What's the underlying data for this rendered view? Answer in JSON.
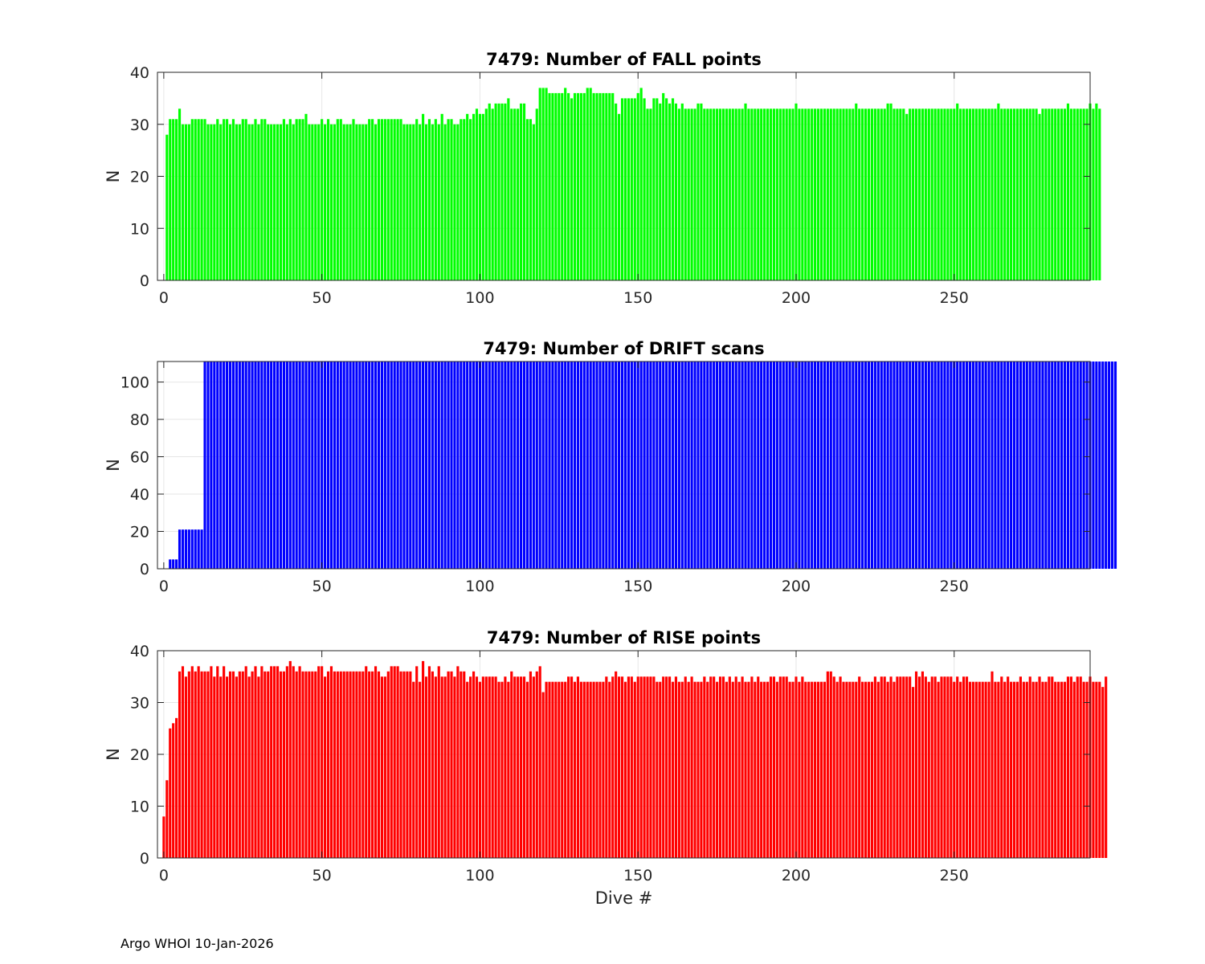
{
  "footer": "Argo WHOI 10-Jan-2026",
  "chart_data": [
    {
      "type": "bar",
      "title": "7479: Number of FALL points",
      "ylabel": "N",
      "xlabel": "",
      "color": "#00ff00",
      "xlim": [
        -2,
        293
      ],
      "ylim": [
        0,
        40
      ],
      "xticks": [
        0,
        50,
        100,
        150,
        200,
        250
      ],
      "yticks": [
        0,
        10,
        20,
        30,
        40
      ],
      "grid": true,
      "x_start": 1,
      "values": [
        28,
        31,
        31,
        31,
        33,
        30,
        30,
        30,
        31,
        31,
        31,
        31,
        31,
        30,
        30,
        30,
        31,
        30,
        31,
        31,
        30,
        31,
        30,
        30,
        31,
        31,
        30,
        30,
        31,
        30,
        31,
        31,
        30,
        30,
        30,
        30,
        30,
        31,
        30,
        31,
        30,
        31,
        31,
        31,
        32,
        30,
        30,
        30,
        30,
        31,
        30,
        31,
        30,
        30,
        31,
        31,
        30,
        30,
        30,
        31,
        30,
        30,
        30,
        30,
        31,
        31,
        30,
        31,
        31,
        31,
        31,
        31,
        31,
        31,
        31,
        30,
        30,
        30,
        30,
        31,
        30,
        32,
        30,
        31,
        30,
        31,
        30,
        32,
        30,
        31,
        31,
        30,
        30,
        31,
        31,
        32,
        31,
        32,
        33,
        32,
        32,
        33,
        34,
        33,
        34,
        34,
        34,
        34,
        35,
        33,
        33,
        33,
        34,
        34,
        31,
        31,
        30,
        33,
        37,
        37,
        37,
        36,
        36,
        36,
        36,
        36,
        37,
        36,
        35,
        36,
        36,
        36,
        36,
        37,
        37,
        36,
        36,
        36,
        36,
        36,
        36,
        36,
        34,
        32,
        35,
        35,
        35,
        35,
        35,
        36,
        37,
        35,
        33,
        33,
        35,
        35,
        34,
        36,
        35,
        34,
        35,
        34,
        33,
        34,
        33,
        33,
        33,
        33,
        34,
        34,
        33,
        33,
        33,
        33,
        33,
        33,
        33,
        33,
        33,
        33,
        33,
        33,
        33,
        34,
        33,
        33,
        33,
        33,
        33,
        33,
        33,
        33,
        33,
        33,
        33,
        33,
        33,
        33,
        33,
        34,
        33,
        33,
        33,
        33,
        33,
        33,
        33,
        33,
        33,
        33,
        33,
        33,
        33,
        33,
        33,
        33,
        33,
        33,
        34,
        33,
        33,
        33,
        33,
        33,
        33,
        33,
        33,
        33,
        34,
        34,
        33,
        33,
        33,
        33,
        32,
        33,
        33,
        33,
        33,
        33,
        33,
        33,
        33,
        33,
        33,
        33,
        33,
        33,
        33,
        33,
        34,
        33,
        33,
        33,
        33,
        33,
        33,
        33,
        33,
        33,
        33,
        33,
        33,
        34,
        33,
        33,
        33,
        33,
        33,
        33,
        33,
        33,
        33,
        33,
        33,
        33,
        32,
        33,
        33,
        33,
        33,
        33,
        33,
        33,
        33,
        34,
        33,
        33,
        33,
        33,
        33,
        33,
        34,
        33,
        34,
        33
      ]
    },
    {
      "type": "bar",
      "title": "7479: Number of DRIFT scans",
      "ylabel": "N",
      "xlabel": "",
      "color": "#0000ff",
      "xlim": [
        -2,
        293
      ],
      "ylim": [
        0,
        111
      ],
      "xticks": [
        0,
        50,
        100,
        150,
        200,
        250
      ],
      "yticks": [
        0,
        20,
        40,
        60,
        80,
        100
      ],
      "grid": true,
      "x_start": 1,
      "values": [
        0,
        5,
        5,
        5,
        21,
        21,
        21,
        21,
        21,
        21,
        21,
        21,
        111,
        111,
        111,
        111,
        111,
        111,
        111,
        111,
        111,
        111,
        111,
        111,
        111,
        111,
        111,
        111,
        111,
        111,
        111,
        111,
        111,
        111,
        111,
        111,
        111,
        111,
        111,
        111,
        111,
        111,
        111,
        111,
        111,
        111,
        111,
        111,
        111,
        111,
        111,
        111,
        111,
        111,
        111,
        111,
        111,
        111,
        111,
        111,
        111,
        111,
        111,
        111,
        111,
        111,
        111,
        111,
        111,
        111,
        111,
        111,
        111,
        111,
        111,
        111,
        111,
        111,
        111,
        111,
        111,
        111,
        111,
        111,
        111,
        111,
        111,
        111,
        111,
        111,
        111,
        111,
        111,
        111,
        111,
        111,
        111,
        111,
        111,
        111,
        111,
        111,
        111,
        111,
        111,
        111,
        111,
        111,
        111,
        111,
        111,
        111,
        111,
        111,
        111,
        111,
        111,
        111,
        111,
        111,
        111,
        111,
        111,
        111,
        111,
        111,
        111,
        111,
        111,
        111,
        111,
        111,
        111,
        111,
        111,
        111,
        111,
        111,
        111,
        111,
        111,
        111,
        111,
        111,
        111,
        111,
        111,
        111,
        111,
        111,
        111,
        111,
        111,
        111,
        111,
        111,
        111,
        111,
        111,
        111,
        111,
        111,
        111,
        111,
        111,
        111,
        111,
        111,
        111,
        111,
        111,
        111,
        111,
        111,
        111,
        111,
        111,
        111,
        111,
        111,
        111,
        111,
        111,
        111,
        111,
        111,
        111,
        111,
        111,
        111,
        111,
        111,
        111,
        111,
        111,
        111,
        111,
        111,
        111,
        111,
        111,
        111,
        111,
        111,
        111,
        111,
        111,
        111,
        111,
        111,
        111,
        111,
        111,
        111,
        111,
        111,
        111,
        111,
        111,
        111,
        111,
        111,
        111,
        111,
        111,
        111,
        111,
        111,
        111,
        111,
        111,
        111,
        111,
        111,
        111,
        111,
        111,
        111,
        111,
        111,
        111,
        111,
        111,
        111,
        111,
        111,
        111,
        111,
        111,
        111,
        111,
        111,
        111,
        111,
        111,
        111,
        111,
        111,
        111,
        111,
        111,
        111,
        111,
        111,
        111,
        111,
        111,
        111,
        111,
        111,
        111,
        111,
        111,
        111,
        111,
        111,
        111,
        111,
        111,
        111,
        111,
        111,
        111,
        111,
        111,
        111,
        111,
        111,
        111,
        111,
        111,
        111,
        111,
        111,
        111,
        111,
        111,
        111,
        111,
        111,
        111
      ]
    },
    {
      "type": "bar",
      "title": "7479: Number of RISE points",
      "ylabel": "N",
      "xlabel": "Dive #",
      "color": "#ff0000",
      "xlim": [
        -2,
        293
      ],
      "ylim": [
        0,
        40
      ],
      "xticks": [
        0,
        50,
        100,
        150,
        200,
        250
      ],
      "yticks": [
        0,
        10,
        20,
        30,
        40
      ],
      "grid": true,
      "x_start": 0,
      "values": [
        8,
        15,
        25,
        26,
        27,
        36,
        37,
        35,
        36,
        37,
        36,
        37,
        36,
        36,
        36,
        37,
        35,
        37,
        35,
        37,
        35,
        36,
        36,
        35,
        36,
        36,
        37,
        35,
        36,
        37,
        35,
        37,
        36,
        36,
        37,
        37,
        37,
        36,
        36,
        37,
        38,
        37,
        36,
        37,
        36,
        36,
        36,
        36,
        36,
        37,
        37,
        35,
        36,
        37,
        36,
        36,
        36,
        36,
        36,
        36,
        36,
        36,
        36,
        36,
        37,
        36,
        36,
        37,
        36,
        35,
        35,
        36,
        37,
        37,
        37,
        36,
        36,
        36,
        36,
        34,
        37,
        34,
        38,
        35,
        37,
        36,
        35,
        37,
        35,
        35,
        36,
        36,
        35,
        37,
        36,
        36,
        34,
        35,
        36,
        35,
        34,
        35,
        35,
        35,
        35,
        35,
        34,
        34,
        35,
        34,
        36,
        35,
        35,
        35,
        35,
        34,
        36,
        35,
        36,
        37,
        32,
        34,
        34,
        34,
        34,
        34,
        34,
        34,
        35,
        35,
        34,
        35,
        34,
        34,
        34,
        34,
        34,
        34,
        34,
        34,
        35,
        34,
        35,
        36,
        35,
        35,
        34,
        35,
        35,
        34,
        35,
        35,
        35,
        35,
        35,
        35,
        34,
        34,
        35,
        35,
        35,
        34,
        35,
        34,
        34,
        35,
        34,
        35,
        34,
        34,
        34,
        35,
        34,
        35,
        35,
        34,
        35,
        35,
        34,
        35,
        34,
        35,
        34,
        35,
        34,
        34,
        35,
        34,
        35,
        34,
        34,
        34,
        35,
        35,
        34,
        35,
        35,
        35,
        34,
        34,
        35,
        34,
        35,
        34,
        34,
        34,
        34,
        34,
        34,
        34,
        36,
        36,
        35,
        34,
        35,
        34,
        34,
        34,
        34,
        34,
        35,
        34,
        34,
        34,
        34,
        35,
        34,
        35,
        35,
        34,
        35,
        34,
        35,
        35,
        35,
        35,
        35,
        33,
        36,
        35,
        36,
        35,
        34,
        35,
        35,
        34,
        35,
        35,
        35,
        35,
        34,
        35,
        34,
        35,
        35,
        34,
        34,
        34,
        34,
        34,
        34,
        34,
        36,
        34,
        34,
        35,
        34,
        35,
        34,
        34,
        34,
        35,
        34,
        34,
        35,
        34,
        34,
        35,
        34,
        34,
        35,
        35,
        34,
        34,
        34,
        34,
        35,
        35,
        34,
        35,
        35,
        34,
        34,
        35,
        34,
        34,
        34,
        33,
        35
      ]
    }
  ]
}
